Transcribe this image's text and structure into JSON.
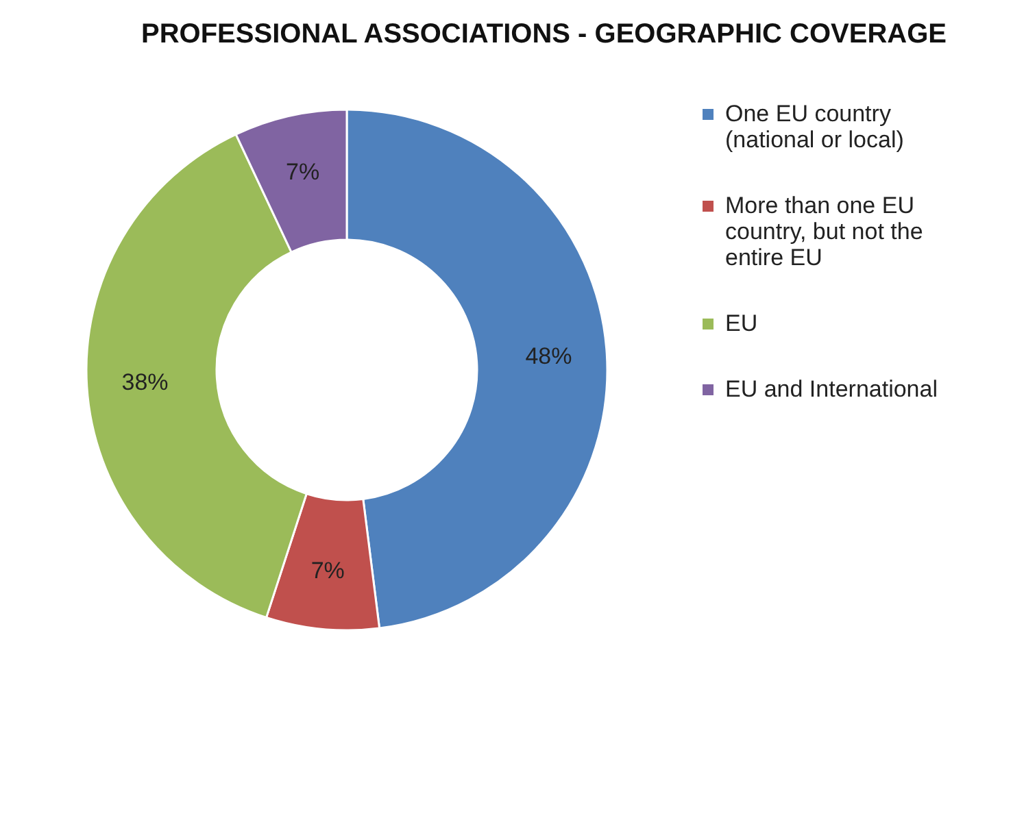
{
  "chart_data": {
    "type": "donut",
    "title": "PROFESSIONAL ASSOCIATIONS - GEOGRAPHIC COVERAGE",
    "categories": [
      "One EU country (national or local)",
      "More than one EU country, but not the entire EU",
      "EU",
      "EU and International"
    ],
    "values": [
      48,
      7,
      38,
      7
    ],
    "colors": [
      "#4f81bd",
      "#c0504d",
      "#9bbb59",
      "#8064a2"
    ],
    "value_labels": [
      "48%",
      "7%",
      "38%",
      "7%"
    ],
    "legend": "right"
  }
}
